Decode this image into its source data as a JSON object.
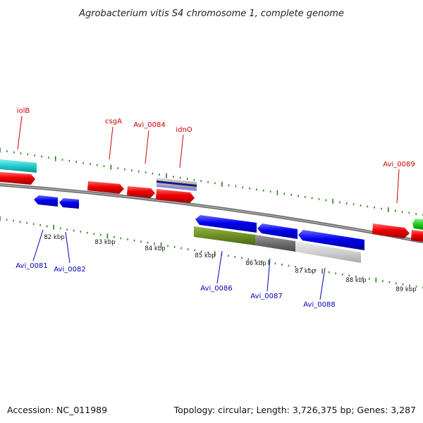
{
  "title": "Agrobacterium vitis S4 chromosome 1, complete genome",
  "footer": {
    "accession": "Accession: NC_011989",
    "summary": "Topology: circular; Length: 3,726,375 bp; Genes: 3,287"
  },
  "colors": {
    "forward_label": "#cc0000",
    "reverse_label": "#0000bb",
    "backbone": "#808080",
    "tick": "#2e7d1a"
  },
  "scale_labels": [
    {
      "text": "82 kbp"
    },
    {
      "text": "83 kbp"
    },
    {
      "text": "84 kbp"
    },
    {
      "text": "85 kbp"
    },
    {
      "text": "86 kbp"
    },
    {
      "text": "87 kbp"
    },
    {
      "text": "88 kbp"
    },
    {
      "text": "89 kbp"
    }
  ],
  "gene_labels": [
    {
      "text": "iolB",
      "strand": "forward"
    },
    {
      "text": "csgA",
      "strand": "forward"
    },
    {
      "text": "Avi_0084",
      "strand": "forward"
    },
    {
      "text": "idnO",
      "strand": "forward"
    },
    {
      "text": "Avi_0089",
      "strand": "forward"
    },
    {
      "text": "Avi_0081",
      "strand": "reverse"
    },
    {
      "text": "Avi_0082",
      "strand": "reverse"
    },
    {
      "text": "Avi_0086",
      "strand": "reverse"
    },
    {
      "text": "Avi_0087",
      "strand": "reverse"
    },
    {
      "text": "Avi_0088",
      "strand": "reverse"
    }
  ]
}
